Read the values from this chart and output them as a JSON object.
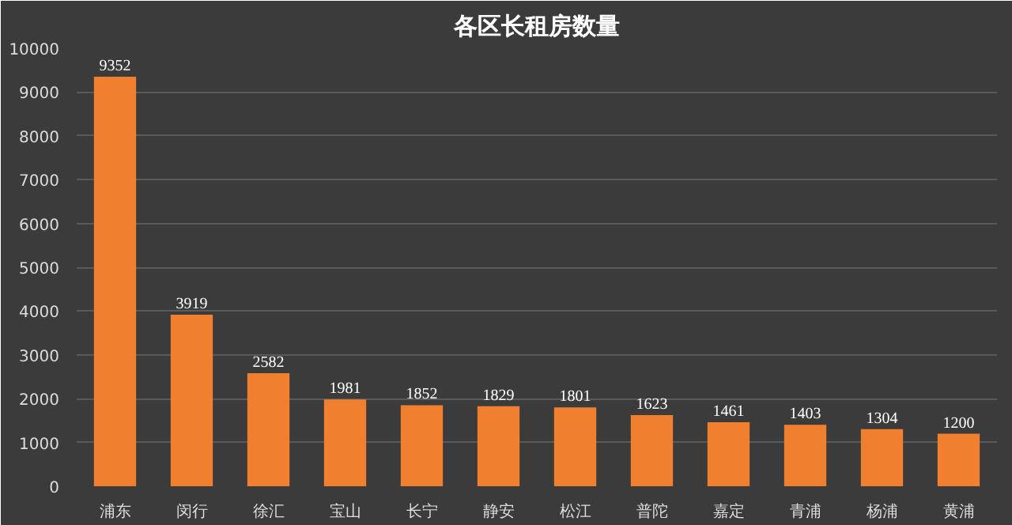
{
  "chart_data": {
    "type": "bar",
    "title": "各区长租房数量",
    "categories": [
      "浦东",
      "闵行",
      "徐汇",
      "宝山",
      "长宁",
      "静安",
      "松江",
      "普陀",
      "嘉定",
      "青浦",
      "杨浦",
      "黄浦"
    ],
    "values": [
      9352,
      3919,
      2582,
      1981,
      1852,
      1829,
      1801,
      1623,
      1461,
      1403,
      1304,
      1200
    ],
    "color": "#f08030",
    "ylim": [
      0,
      10000
    ],
    "yticks": [
      0,
      1000,
      2000,
      3000,
      4000,
      5000,
      6000,
      7000,
      8000,
      9000,
      10000
    ],
    "grid": "y",
    "data_labels": true
  }
}
